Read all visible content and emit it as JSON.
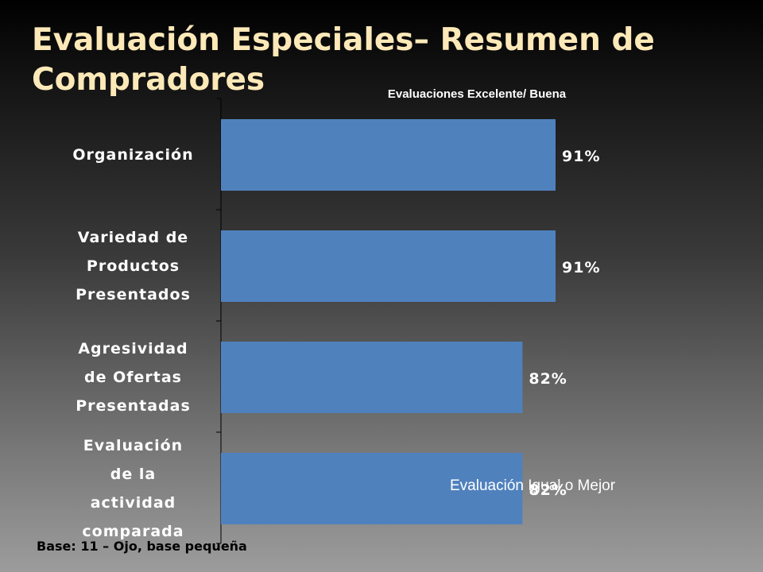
{
  "title": "Evaluación Especiales– Resumen de Compradores",
  "note": "Evaluación Igual o Mejor",
  "footnote": "Base: 11 – Ojo, base pequeña",
  "colors": {
    "bar": "#4f81bd",
    "title": "#fde9b8",
    "text": "#ffffff"
  },
  "chart_data": {
    "type": "bar",
    "orientation": "horizontal",
    "title": "Evaluaciones  Excelente/ Buena",
    "categories": [
      "Organización",
      "Variedad de Productos Presentados",
      "Agresividad de Ofertas Presentadas",
      "Evaluación de la actividad comparada"
    ],
    "category_lines": [
      [
        "Organización"
      ],
      [
        "Variedad de",
        "Productos",
        "Presentados"
      ],
      [
        "Agresividad",
        "de Ofertas",
        "Presentadas"
      ],
      [
        "Evaluación",
        "de la",
        "actividad",
        "comparada"
      ]
    ],
    "values": [
      91,
      91,
      82,
      82
    ],
    "data_labels": [
      "91%",
      "91%",
      "82%",
      "82%"
    ],
    "unit": "%",
    "xlim": [
      0,
      100
    ],
    "grid": false,
    "legend": false
  }
}
